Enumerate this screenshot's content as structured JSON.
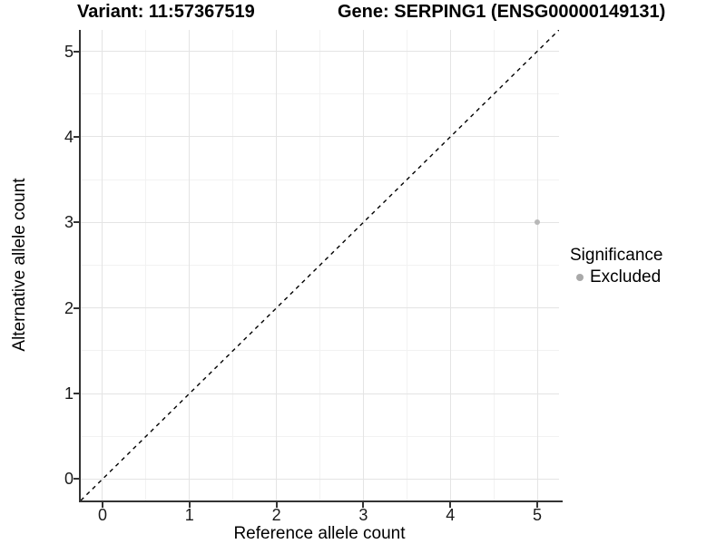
{
  "titles": {
    "left": "Variant: 11:57367519",
    "right": "Gene: SERPING1 (ENSG00000149131)"
  },
  "chart_data": {
    "type": "scatter",
    "xlabel": "Reference allele count",
    "ylabel": "Alternative allele count",
    "xlim": [
      -0.25,
      5.25
    ],
    "ylim": [
      -0.25,
      5.25
    ],
    "x_ticks": [
      0,
      1,
      2,
      3,
      4,
      5
    ],
    "y_ticks": [
      0,
      1,
      2,
      3,
      4,
      5
    ],
    "x_minor": [
      0.5,
      1.5,
      2.5,
      3.5,
      4.5
    ],
    "y_minor": [
      0.5,
      1.5,
      2.5,
      3.5,
      4.5
    ],
    "grid": true,
    "points": [
      {
        "x": 5,
        "y": 3,
        "series": "Excluded"
      }
    ],
    "identity_line": {
      "style": "dashed",
      "from": [
        -0.25,
        -0.25
      ],
      "to": [
        5.25,
        5.25
      ],
      "color": "#000000"
    },
    "legend": {
      "title": "Significance",
      "position": "right",
      "items": [
        {
          "label": "Excluded",
          "color": "#a9a9a9"
        }
      ]
    },
    "colors": {
      "point": "#b8b8b8",
      "grid_major": "#e4e4e4",
      "grid_minor": "#f2f2f2",
      "axis": "#333333",
      "text": "#000000"
    }
  }
}
